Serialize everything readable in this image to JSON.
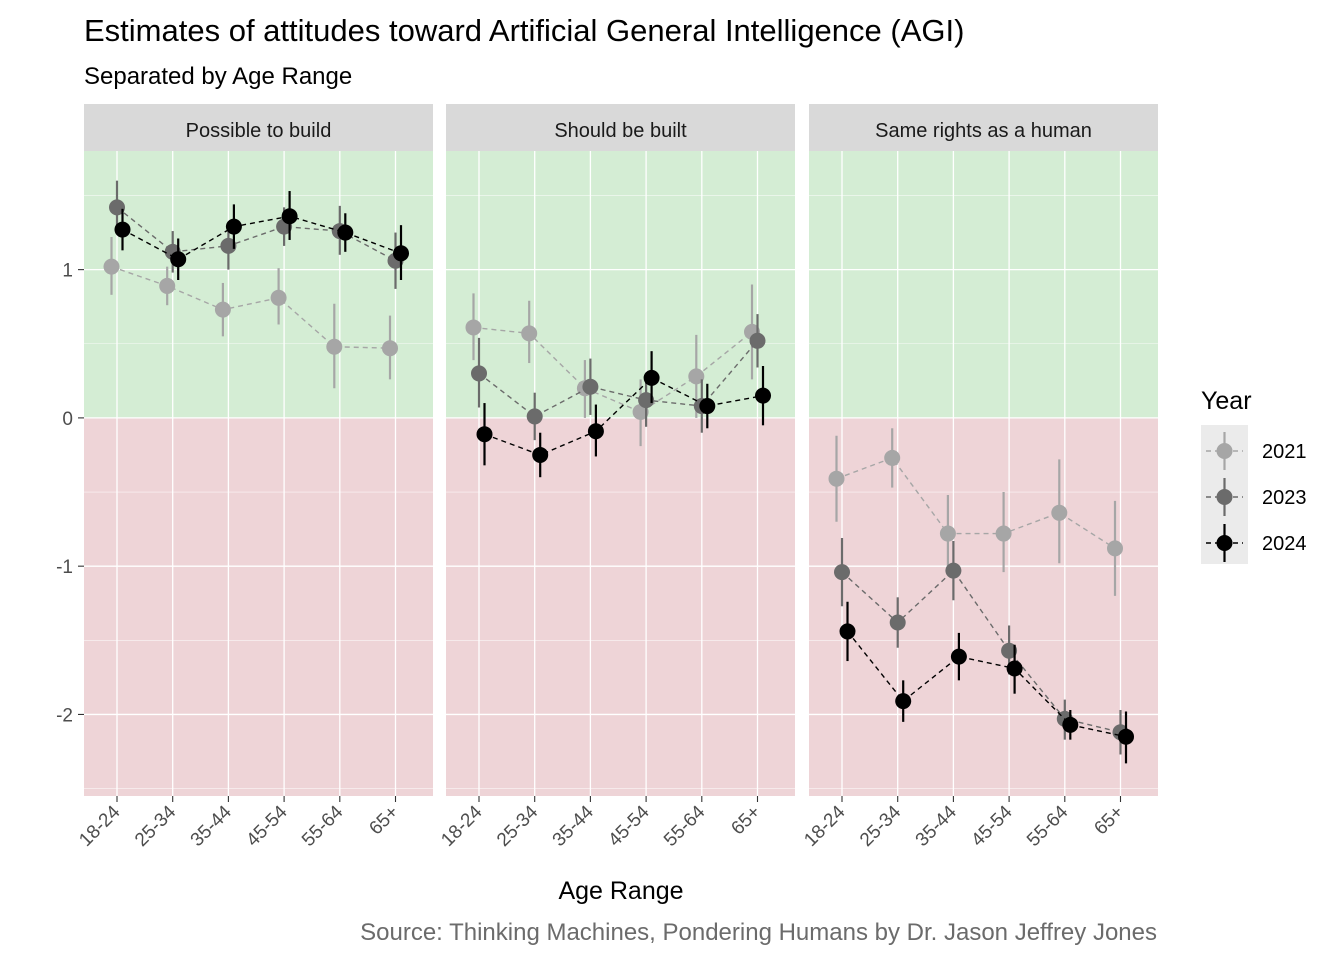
{
  "chart_data": {
    "type": "line",
    "title": "Estimates of attitudes toward Artificial General Intelligence (AGI)",
    "subtitle": "Separated by Age Range",
    "xlabel": "Age Range",
    "ylabel": "",
    "caption": "Source: Thinking Machines, Pondering Humans by Dr. Jason Jeffrey Jones",
    "categories": [
      "18-24",
      "25-34",
      "35-44",
      "45-54",
      "55-64",
      "65+"
    ],
    "ylim": [
      -2.55,
      1.8
    ],
    "yticks": [
      -2,
      -1,
      0,
      1
    ],
    "ytick_labels": [
      "-2",
      "-1",
      "0",
      "1"
    ],
    "grid": true,
    "background_bands": [
      {
        "from": 0,
        "to": 1.8,
        "color": "#d4edd4"
      },
      {
        "from": -2.55,
        "to": 0,
        "color": "#eed4d7"
      }
    ],
    "legend": {
      "title": "Year",
      "position": "right",
      "entries": [
        {
          "label": "2021",
          "color": "#a6a6a6"
        },
        {
          "label": "2023",
          "color": "#6b6b6b"
        },
        {
          "label": "2024",
          "color": "#000000"
        }
      ]
    },
    "panels": [
      {
        "title": "Possible to build",
        "series": [
          {
            "name": "2021",
            "values": [
              1.02,
              0.89,
              0.73,
              0.81,
              0.48,
              0.47
            ],
            "lower": [
              0.83,
              0.76,
              0.55,
              0.63,
              0.2,
              0.26
            ],
            "upper": [
              1.22,
              1.02,
              0.91,
              1.01,
              0.77,
              0.69
            ]
          },
          {
            "name": "2023",
            "values": [
              1.42,
              1.12,
              1.16,
              1.29,
              1.26,
              1.06
            ],
            "lower": [
              1.24,
              0.98,
              1.0,
              1.16,
              1.1,
              0.87
            ],
            "upper": [
              1.6,
              1.26,
              1.32,
              1.42,
              1.43,
              1.25
            ]
          },
          {
            "name": "2024",
            "values": [
              1.27,
              1.07,
              1.29,
              1.36,
              1.25,
              1.11
            ],
            "lower": [
              1.13,
              0.93,
              1.14,
              1.2,
              1.12,
              0.93
            ],
            "upper": [
              1.41,
              1.21,
              1.44,
              1.53,
              1.38,
              1.3
            ]
          }
        ]
      },
      {
        "title": "Should be built",
        "series": [
          {
            "name": "2021",
            "values": [
              0.61,
              0.57,
              0.2,
              0.04,
              0.28,
              0.58
            ],
            "lower": [
              0.39,
              0.37,
              0.0,
              -0.19,
              0.0,
              0.26
            ],
            "upper": [
              0.84,
              0.79,
              0.39,
              0.26,
              0.56,
              0.9
            ]
          },
          {
            "name": "2023",
            "values": [
              0.3,
              0.01,
              0.21,
              0.12,
              0.08,
              0.52
            ],
            "lower": [
              0.07,
              -0.15,
              0.02,
              -0.06,
              -0.1,
              0.34
            ],
            "upper": [
              0.54,
              0.17,
              0.4,
              0.3,
              0.26,
              0.7
            ]
          },
          {
            "name": "2024",
            "values": [
              -0.11,
              -0.25,
              -0.09,
              0.27,
              0.08,
              0.15
            ],
            "lower": [
              -0.32,
              -0.4,
              -0.26,
              0.1,
              -0.07,
              -0.05
            ],
            "upper": [
              0.1,
              -0.1,
              0.09,
              0.45,
              0.23,
              0.35
            ]
          }
        ]
      },
      {
        "title": "Same rights as a human",
        "series": [
          {
            "name": "2021",
            "values": [
              -0.41,
              -0.27,
              -0.78,
              -0.78,
              -0.64,
              -0.88
            ],
            "lower": [
              -0.7,
              -0.47,
              -1.02,
              -1.04,
              -0.98,
              -1.2
            ],
            "upper": [
              -0.12,
              -0.07,
              -0.52,
              -0.5,
              -0.28,
              -0.56
            ]
          },
          {
            "name": "2023",
            "values": [
              -1.04,
              -1.38,
              -1.03,
              -1.57,
              -2.03,
              -2.12
            ],
            "lower": [
              -1.27,
              -1.55,
              -1.23,
              -1.73,
              -2.17,
              -2.27
            ],
            "upper": [
              -0.81,
              -1.21,
              -0.83,
              -1.4,
              -1.9,
              -1.97
            ]
          },
          {
            "name": "2024",
            "values": [
              -1.44,
              -1.91,
              -1.61,
              -1.69,
              -2.07,
              -2.15
            ],
            "lower": [
              -1.64,
              -2.05,
              -1.77,
              -1.86,
              -2.17,
              -2.33
            ],
            "upper": [
              -1.24,
              -1.77,
              -1.45,
              -1.53,
              -1.97,
              -1.98
            ]
          }
        ]
      }
    ]
  }
}
